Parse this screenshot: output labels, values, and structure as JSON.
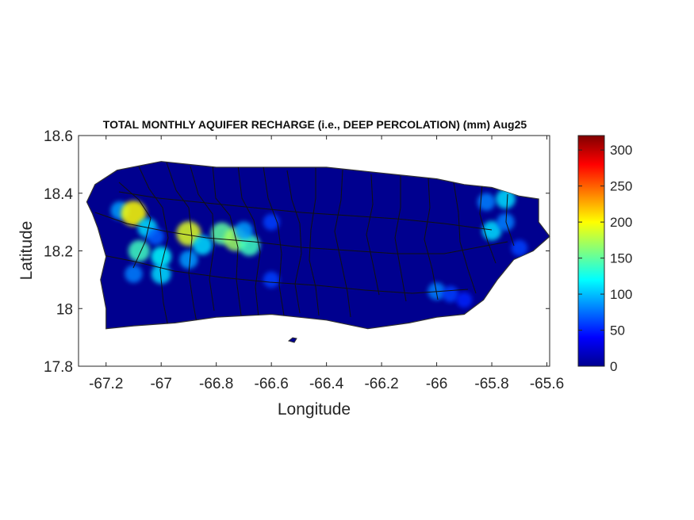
{
  "title": "TOTAL MONTHLY AQUIFER RECHARGE (i.e., DEEP PERCOLATION) (mm)  Aug25",
  "xlabel": "Longitude",
  "ylabel": "Latitude",
  "x_ticks": [
    "-67.2",
    "-67",
    "-66.8",
    "-66.6",
    "-66.4",
    "-66.2",
    "-66",
    "-65.8",
    "-65.6"
  ],
  "y_ticks": [
    "18.6",
    "18.4",
    "18.2",
    "18",
    "17.8"
  ],
  "colorbar_ticks": [
    "300",
    "250",
    "200",
    "150",
    "100",
    "50",
    "0"
  ],
  "colormap": "jet",
  "colors": {
    "background": "#00008f",
    "border": "#000000",
    "outline": "#333333"
  },
  "chart_data": {
    "type": "heatmap",
    "xlim": [
      -67.3,
      -65.59
    ],
    "ylim": [
      17.8,
      18.6
    ],
    "clim": [
      0,
      320
    ],
    "x_tick_values": [
      -67.2,
      -67,
      -66.8,
      -66.6,
      -66.4,
      -66.2,
      -66,
      -65.8,
      -65.6
    ],
    "y_tick_values": [
      18.6,
      18.4,
      18.2,
      18.0,
      17.8
    ],
    "colorbar_tick_values": [
      300,
      250,
      200,
      150,
      100,
      50,
      0
    ],
    "island_outline": [
      [
        -67.27,
        18.37
      ],
      [
        -67.24,
        18.43
      ],
      [
        -67.16,
        18.48
      ],
      [
        -67.0,
        18.51
      ],
      [
        -66.8,
        18.49
      ],
      [
        -66.6,
        18.49
      ],
      [
        -66.4,
        18.49
      ],
      [
        -66.2,
        18.47
      ],
      [
        -66.0,
        18.45
      ],
      [
        -65.9,
        18.43
      ],
      [
        -65.8,
        18.42
      ],
      [
        -65.7,
        18.39
      ],
      [
        -65.63,
        18.38
      ],
      [
        -65.63,
        18.3
      ],
      [
        -65.59,
        18.25
      ],
      [
        -65.65,
        18.2
      ],
      [
        -65.72,
        18.17
      ],
      [
        -65.78,
        18.1
      ],
      [
        -65.83,
        18.03
      ],
      [
        -65.9,
        17.98
      ],
      [
        -66.0,
        17.97
      ],
      [
        -66.1,
        17.95
      ],
      [
        -66.25,
        17.93
      ],
      [
        -66.4,
        17.96
      ],
      [
        -66.6,
        17.98
      ],
      [
        -66.8,
        17.97
      ],
      [
        -66.95,
        17.95
      ],
      [
        -67.1,
        17.94
      ],
      [
        -67.2,
        17.93
      ],
      [
        -67.2,
        18.0
      ],
      [
        -67.22,
        18.1
      ],
      [
        -67.2,
        18.18
      ],
      [
        -67.23,
        18.28
      ],
      [
        -67.25,
        18.33
      ]
    ],
    "recharge_hotspots": [
      {
        "lon": -67.15,
        "lat": 18.34,
        "value": 90
      },
      {
        "lon": -67.1,
        "lat": 18.33,
        "value": 200
      },
      {
        "lon": -67.05,
        "lat": 18.28,
        "value": 110
      },
      {
        "lon": -67.02,
        "lat": 18.25,
        "value": 70
      },
      {
        "lon": -67.08,
        "lat": 18.2,
        "value": 140
      },
      {
        "lon": -67.0,
        "lat": 18.18,
        "value": 120
      },
      {
        "lon": -66.9,
        "lat": 18.17,
        "value": 90
      },
      {
        "lon": -67.1,
        "lat": 18.12,
        "value": 80
      },
      {
        "lon": -67.0,
        "lat": 18.12,
        "value": 110
      },
      {
        "lon": -66.9,
        "lat": 18.26,
        "value": 190
      },
      {
        "lon": -66.85,
        "lat": 18.22,
        "value": 110
      },
      {
        "lon": -66.78,
        "lat": 18.26,
        "value": 150
      },
      {
        "lon": -66.73,
        "lat": 18.24,
        "value": 170
      },
      {
        "lon": -66.68,
        "lat": 18.22,
        "value": 140
      },
      {
        "lon": -66.7,
        "lat": 18.27,
        "value": 90
      },
      {
        "lon": -66.6,
        "lat": 18.3,
        "value": 60
      },
      {
        "lon": -66.6,
        "lat": 18.1,
        "value": 60
      },
      {
        "lon": -65.8,
        "lat": 18.27,
        "value": 110
      },
      {
        "lon": -65.75,
        "lat": 18.3,
        "value": 80
      },
      {
        "lon": -65.82,
        "lat": 18.37,
        "value": 80
      },
      {
        "lon": -65.75,
        "lat": 18.38,
        "value": 110
      },
      {
        "lon": -66.0,
        "lat": 18.06,
        "value": 80
      },
      {
        "lon": -65.95,
        "lat": 18.05,
        "value": 60
      },
      {
        "lon": -65.9,
        "lat": 18.03,
        "value": 50
      },
      {
        "lon": -65.7,
        "lat": 18.21,
        "value": 60
      }
    ]
  }
}
